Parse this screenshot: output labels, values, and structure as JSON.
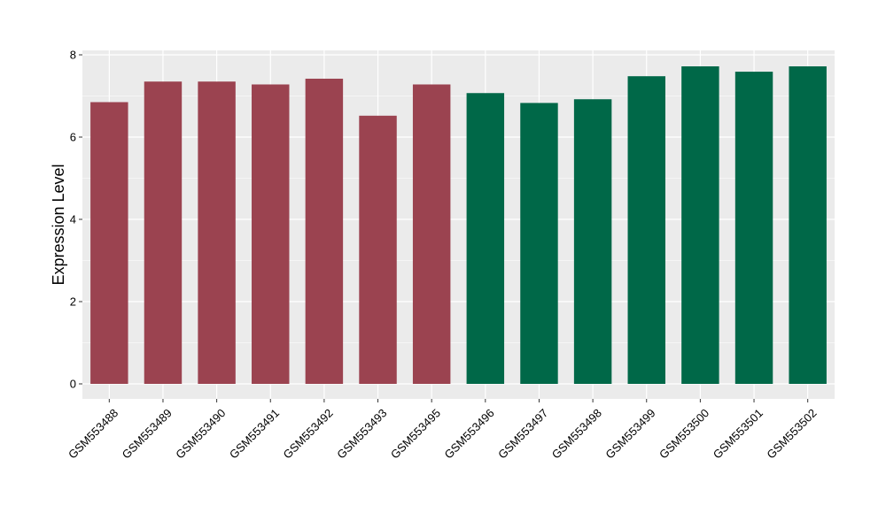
{
  "chart_data": {
    "type": "bar",
    "title": "",
    "xlabel": "",
    "ylabel": "Expression Level",
    "ylim": [
      0,
      8.1
    ],
    "y_ticks": [
      0,
      2,
      4,
      6,
      8
    ],
    "grid": true,
    "categories": [
      "GSM553488",
      "GSM553489",
      "GSM553490",
      "GSM553491",
      "GSM553492",
      "GSM553493",
      "GSM553495",
      "GSM553496",
      "GSM553497",
      "GSM553498",
      "GSM553499",
      "GSM553500",
      "GSM553501",
      "GSM553502"
    ],
    "values": [
      6.85,
      7.35,
      7.35,
      7.28,
      7.42,
      6.52,
      7.28,
      7.07,
      6.83,
      6.92,
      7.48,
      7.72,
      7.59,
      7.72
    ],
    "bar_colors": [
      "#9b4350",
      "#9b4350",
      "#9b4350",
      "#9b4350",
      "#9b4350",
      "#9b4350",
      "#9b4350",
      "#006848",
      "#006848",
      "#006848",
      "#006848",
      "#006848",
      "#006848",
      "#006848"
    ],
    "panel_background": "#ebebeb",
    "grid_color": "#ffffff"
  }
}
